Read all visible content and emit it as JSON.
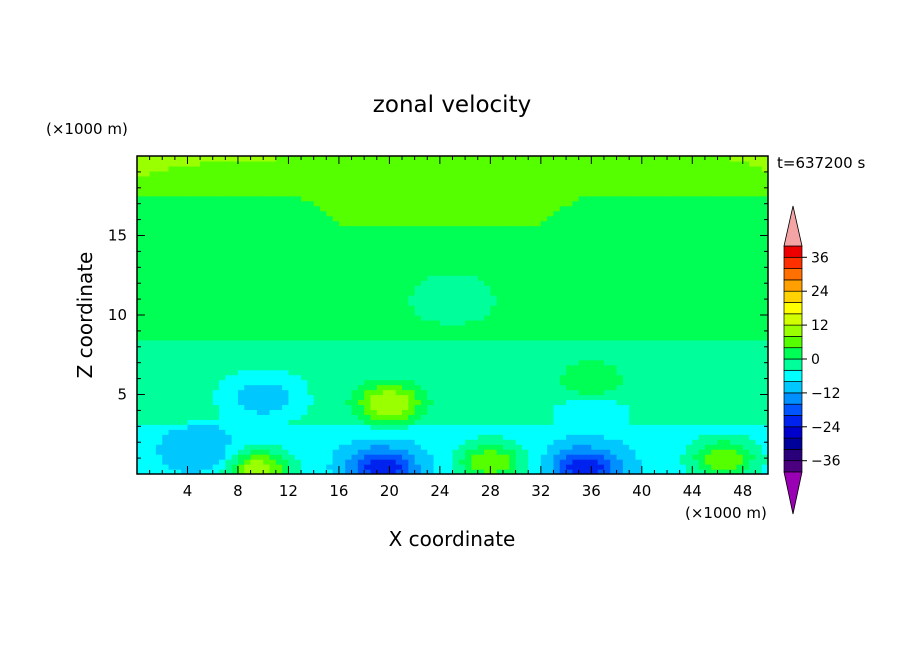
{
  "chart_data": {
    "type": "heatmap",
    "title": "zonal velocity",
    "xlabel": "X coordinate",
    "ylabel": "Z coordinate",
    "x_unit": "(×1000 m)",
    "y_unit": "(×1000 m)",
    "time_label": "t=637200 s",
    "xlim": [
      0,
      50
    ],
    "ylim": [
      0,
      20
    ],
    "x_ticks": [
      "4",
      "8",
      "12",
      "16",
      "20",
      "24",
      "28",
      "32",
      "36",
      "40",
      "44",
      "48"
    ],
    "y_ticks": [
      "5",
      "10",
      "15"
    ],
    "colorbar": {
      "labels": [
        "36",
        "24",
        "12",
        "0",
        "-12",
        "-24",
        "-36"
      ],
      "levels": [
        -40,
        -36,
        -32,
        -28,
        -24,
        -20,
        -16,
        -12,
        -8,
        -4,
        0,
        4,
        8,
        12,
        16,
        20,
        24,
        28,
        32,
        36,
        40
      ],
      "colors": [
        "#4b0080",
        "#2a007a",
        "#00009a",
        "#0000cc",
        "#0022ee",
        "#0055ff",
        "#0090ff",
        "#00c8ff",
        "#00ffff",
        "#00ff9a",
        "#00ff55",
        "#55ff00",
        "#9aff00",
        "#d2ff00",
        "#ffff00",
        "#ffd200",
        "#ffa000",
        "#ff7000",
        "#ff3000",
        "#ee0000"
      ],
      "under_color": "#9a00b4",
      "over_color": "#f4a4a4"
    },
    "features": [
      {
        "x": 9.5,
        "z": 0.3,
        "value": 12
      },
      {
        "x": 19.5,
        "z": 0.4,
        "value": -24
      },
      {
        "x": 35.5,
        "z": 0.4,
        "value": -24
      },
      {
        "x": 10.0,
        "z": 4.8,
        "value": -12
      },
      {
        "x": 20.0,
        "z": 4.5,
        "value": 12
      },
      {
        "x": 36.0,
        "z": 4.0,
        "value": -8
      },
      {
        "x": 36.0,
        "z": 6.0,
        "value": 4
      },
      {
        "x": 46.5,
        "z": 1.0,
        "value": 8
      },
      {
        "x": 28.0,
        "z": 0.8,
        "value": 8
      },
      {
        "x": 5.0,
        "z": 1.5,
        "value": -12
      },
      {
        "x": 25.0,
        "z": 11.0,
        "value": -4
      },
      {
        "x": 8.0,
        "z": 12.0,
        "value": 0
      },
      {
        "x": 40.0,
        "z": 13.0,
        "value": 0
      },
      {
        "x": 25.0,
        "z": 16.0,
        "value": 4
      },
      {
        "x": 25.0,
        "z": 19.0,
        "value": 8
      }
    ]
  }
}
